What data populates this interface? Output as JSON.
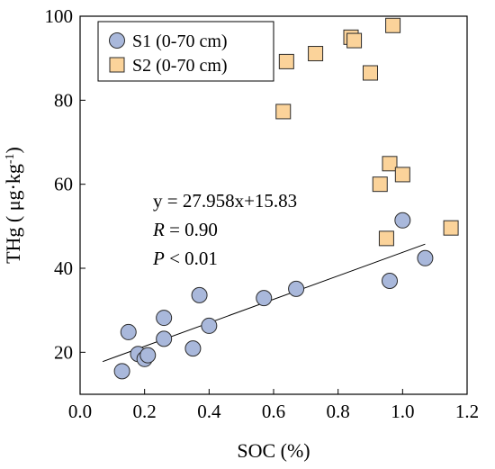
{
  "chart_data": {
    "type": "scatter",
    "xlabel": "SOC (%)",
    "ylabel": "THg ( μg·kg",
    "ylabel_sup": "-1",
    "ylabel_close": ")",
    "xlim": [
      0.0,
      1.2
    ],
    "ylim": [
      10,
      100
    ],
    "xticks": [
      "0.0",
      "0.2",
      "0.4",
      "0.6",
      "0.8",
      "1.0",
      "1.2"
    ],
    "yticks": [
      "20",
      "40",
      "60",
      "80",
      "100"
    ],
    "grid": false,
    "legend_position": "top-left",
    "series": [
      {
        "name": "S1 (0-70 cm)",
        "marker": "circle",
        "color": "#a9b8db",
        "points": [
          [
            0.13,
            15.5
          ],
          [
            0.15,
            24.8
          ],
          [
            0.18,
            19.6
          ],
          [
            0.2,
            18.4
          ],
          [
            0.21,
            19.3
          ],
          [
            0.26,
            23.2
          ],
          [
            0.26,
            28.2
          ],
          [
            0.35,
            20.9
          ],
          [
            0.37,
            33.6
          ],
          [
            0.4,
            26.3
          ],
          [
            0.57,
            32.9
          ],
          [
            0.67,
            35.1
          ],
          [
            0.96,
            37.0
          ],
          [
            1.0,
            51.4
          ],
          [
            1.07,
            42.4
          ]
        ]
      },
      {
        "name": "S2 (0-70 cm)",
        "marker": "square",
        "color": "#fbd39a",
        "points": [
          [
            0.63,
            77.3
          ],
          [
            0.64,
            89.2
          ],
          [
            0.73,
            91.1
          ],
          [
            0.84,
            95.0
          ],
          [
            0.85,
            94.2
          ],
          [
            0.9,
            86.5
          ],
          [
            0.93,
            60.0
          ],
          [
            0.95,
            47.1
          ],
          [
            0.96,
            64.9
          ],
          [
            0.97,
            97.8
          ],
          [
            1.0,
            62.3
          ],
          [
            1.15,
            49.6
          ]
        ]
      }
    ],
    "fit_line": {
      "slope": 27.958,
      "intercept": 15.83,
      "x_range": [
        0.07,
        1.07
      ]
    },
    "annotations": {
      "equation": "y = 27.958x+15.83",
      "r_label": "R",
      "r_value": " = 0.90",
      "p_label": "P",
      "p_value": " < 0.01"
    }
  }
}
